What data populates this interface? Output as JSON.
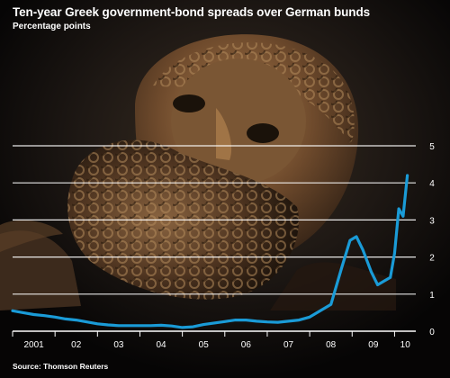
{
  "chart_data": {
    "type": "line",
    "title": "Ten-year Greek government-bond spreads over German bunds",
    "subtitle": "Percentage points",
    "source": "Source: Thomson Reuters",
    "xlabel": "",
    "ylabel": "",
    "ylim": [
      0,
      5
    ],
    "xlim": [
      2001.0,
      2010.5
    ],
    "y_ticks": [
      "0",
      "1",
      "2",
      "3",
      "4",
      "5"
    ],
    "x_ticks": [
      "2001",
      "02",
      "03",
      "04",
      "05",
      "06",
      "07",
      "08",
      "09",
      "10"
    ],
    "grid": true,
    "line_color": "#1a9bd7",
    "gridline_color": "#ffffff",
    "background_image": "bronze-boxer-statue-head-photo",
    "series": [
      {
        "values": [
          [
            2001.0,
            0.55
          ],
          [
            2001.25,
            0.5
          ],
          [
            2001.5,
            0.45
          ],
          [
            2001.75,
            0.42
          ],
          [
            2002.0,
            0.38
          ],
          [
            2002.25,
            0.33
          ],
          [
            2002.5,
            0.3
          ],
          [
            2002.75,
            0.25
          ],
          [
            2003.0,
            0.2
          ],
          [
            2003.25,
            0.17
          ],
          [
            2003.5,
            0.15
          ],
          [
            2003.75,
            0.15
          ],
          [
            2004.0,
            0.15
          ],
          [
            2004.25,
            0.15
          ],
          [
            2004.5,
            0.16
          ],
          [
            2004.75,
            0.14
          ],
          [
            2005.0,
            0.1
          ],
          [
            2005.25,
            0.12
          ],
          [
            2005.5,
            0.18
          ],
          [
            2005.75,
            0.22
          ],
          [
            2006.0,
            0.26
          ],
          [
            2006.25,
            0.3
          ],
          [
            2006.5,
            0.3
          ],
          [
            2006.75,
            0.27
          ],
          [
            2007.0,
            0.25
          ],
          [
            2007.25,
            0.24
          ],
          [
            2007.5,
            0.27
          ],
          [
            2007.75,
            0.3
          ],
          [
            2008.0,
            0.38
          ],
          [
            2008.25,
            0.55
          ],
          [
            2008.5,
            0.72
          ],
          [
            2008.75,
            1.7
          ],
          [
            2008.95,
            2.45
          ],
          [
            2009.1,
            2.55
          ],
          [
            2009.25,
            2.2
          ],
          [
            2009.45,
            1.6
          ],
          [
            2009.6,
            1.25
          ],
          [
            2009.75,
            1.35
          ],
          [
            2009.9,
            1.45
          ],
          [
            2010.0,
            2.1
          ],
          [
            2010.1,
            3.3
          ],
          [
            2010.2,
            3.1
          ],
          [
            2010.3,
            4.2
          ]
        ]
      }
    ]
  }
}
